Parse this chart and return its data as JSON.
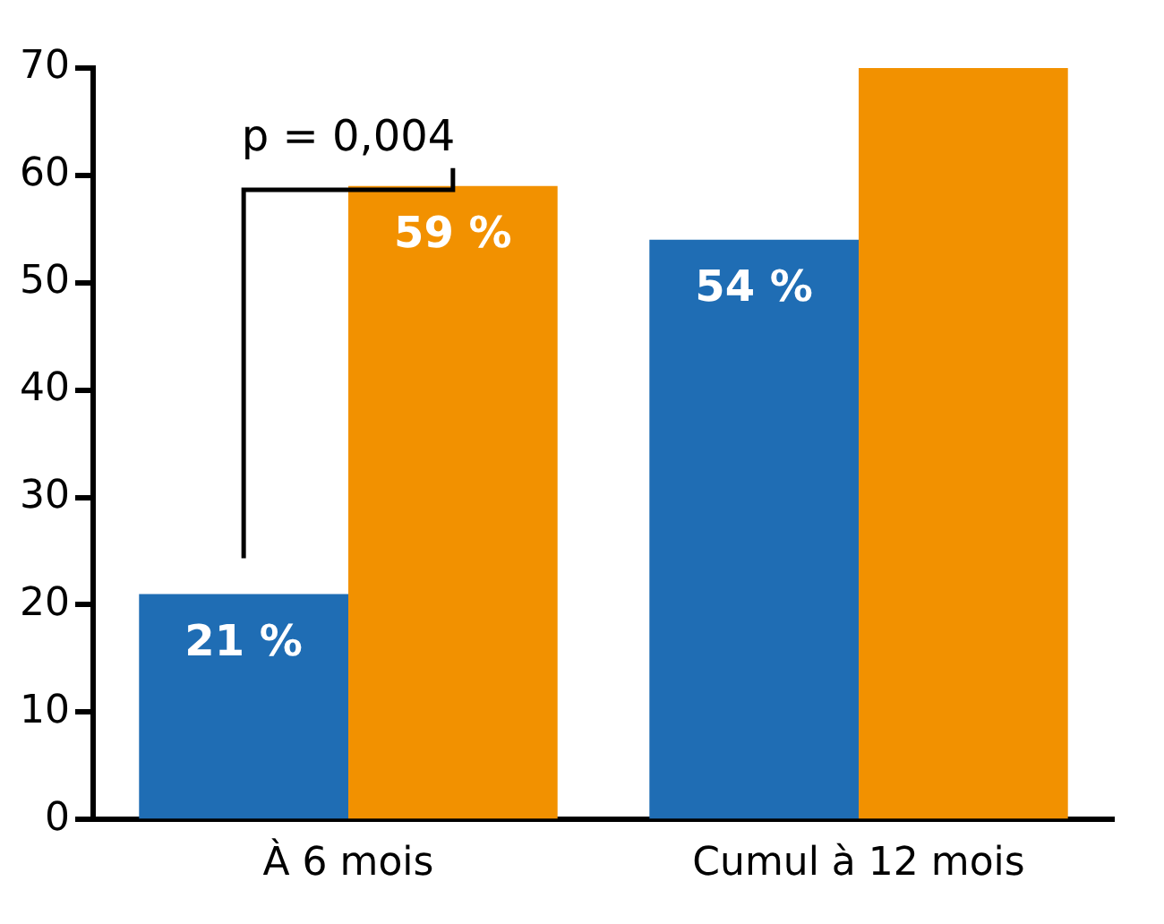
{
  "chart_data": {
    "type": "bar",
    "categories": [
      "À 6 mois",
      "Cumul à 12 mois"
    ],
    "series": [
      {
        "color": "#1f6db4",
        "values": [
          21,
          54
        ],
        "value_labels": [
          "21 %",
          "54 %"
        ]
      },
      {
        "color": "#f29100",
        "values": [
          59,
          70
        ],
        "value_labels": [
          "59 %",
          null
        ]
      }
    ],
    "ylim": [
      0,
      70
    ],
    "yticks": [
      0,
      10,
      20,
      30,
      40,
      50,
      60,
      70
    ],
    "grid": false,
    "legend": false,
    "annotations": [
      "p = 0,004"
    ]
  }
}
